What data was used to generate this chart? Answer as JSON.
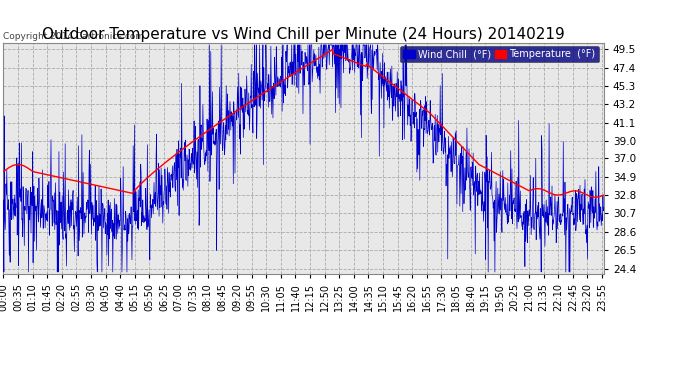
{
  "title": "Outdoor Temperature vs Wind Chill per Minute (24 Hours) 20140219",
  "copyright": "Copyright 2014 Cartronics.com",
  "yticks": [
    24.4,
    26.5,
    28.6,
    30.7,
    32.8,
    34.9,
    37.0,
    39.0,
    41.1,
    43.2,
    45.3,
    47.4,
    49.5
  ],
  "ylim": [
    23.8,
    50.2
  ],
  "legend_labels": [
    "Wind Chill  (°F)",
    "Temperature  (°F)"
  ],
  "bg_color": "#ffffff",
  "plot_bg_color": "#e8e8e8",
  "grid_color": "#aaaaaa",
  "title_fontsize": 11,
  "tick_fontsize": 7.5,
  "n_minutes": 1440,
  "xtick_step": 35
}
